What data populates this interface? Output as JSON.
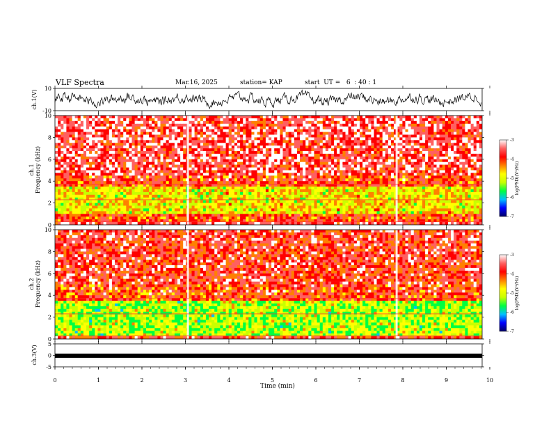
{
  "header": {
    "title": "VLF Spectra",
    "date": "Mar.16, 2025",
    "station": "station= KAP",
    "start": "start  UT =   6  : 40 : 1"
  },
  "chart_data": [
    {
      "type": "line",
      "panel": "ch1-waveform",
      "ylabel": "ch.1(V)",
      "ylim": [
        -10,
        10
      ],
      "yticks": [
        "10",
        "-10"
      ],
      "xlim": [
        0,
        9.8
      ],
      "description_values": "noisy waveform oscillating roughly between -5 and 5 V"
    },
    {
      "type": "heatmap",
      "panel": "ch1-spectrogram",
      "ylabel": "ch.1",
      "ylabel2": "Frequency (kHz)",
      "ylim": [
        0,
        10
      ],
      "yticks": [
        "0",
        "2",
        "4",
        "6",
        "8",
        "10"
      ],
      "xlim": [
        0,
        9.8
      ],
      "bands": [
        {
          "from": 0,
          "to": 0.3,
          "level": -3.5
        },
        {
          "from": 0.3,
          "to": 1.0,
          "level": -4.0
        },
        {
          "from": 1.0,
          "to": 3.4,
          "level": -4.8
        },
        {
          "from": 3.4,
          "to": 4.5,
          "level": -4.0
        },
        {
          "from": 4.5,
          "to": 10,
          "level": -3.6
        }
      ],
      "colorbar": {
        "label": "log(PSD)(V²/Hz)",
        "ticks": [
          "-3",
          "-4",
          "-5",
          "-6",
          "-7"
        ],
        "range": [
          -7,
          -3
        ]
      }
    },
    {
      "type": "heatmap",
      "panel": "ch2-spectrogram",
      "ylabel": "ch.2",
      "ylabel2": "Frequency (kHz)",
      "ylim": [
        0,
        10
      ],
      "yticks": [
        "0",
        "2",
        "4",
        "6",
        "8",
        "10"
      ],
      "xlim": [
        0,
        9.8
      ],
      "bands": [
        {
          "from": 0,
          "to": 0.3,
          "level": -3.8
        },
        {
          "from": 0.3,
          "to": 3.6,
          "level": -5.2
        },
        {
          "from": 3.6,
          "to": 5.0,
          "level": -4.0
        },
        {
          "from": 5.0,
          "to": 10,
          "level": -3.8
        }
      ],
      "colorbar": {
        "label": "log(PSD)(V²/Hz)",
        "ticks": [
          "-3",
          "-4",
          "-5",
          "-6",
          "-7"
        ],
        "range": [
          -7,
          -3
        ]
      }
    },
    {
      "type": "line",
      "panel": "ch3-waveform",
      "ylabel": "ch.3(V)",
      "ylim": [
        -5,
        5
      ],
      "yticks": [
        "5",
        "0",
        "-5"
      ],
      "xlim": [
        0,
        9.8
      ],
      "constant_value": -1.0
    }
  ],
  "xaxis": {
    "label": "Time (min)",
    "ticks": [
      "0",
      "1",
      "2",
      "3",
      "4",
      "5",
      "6",
      "7",
      "8",
      "9",
      "10"
    ],
    "range": [
      0,
      10
    ]
  },
  "colors": {
    "cb_stops": [
      "#000066",
      "#0000ff",
      "#00c0ff",
      "#00ff40",
      "#c8ff00",
      "#ffff00",
      "#ff8000",
      "#ff0000",
      "#ff6060",
      "#ffffff"
    ]
  }
}
